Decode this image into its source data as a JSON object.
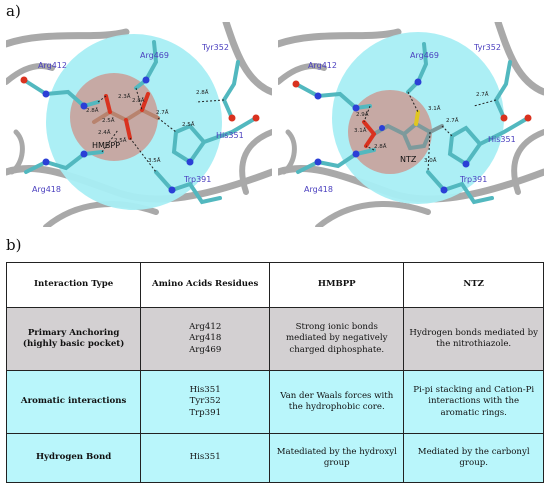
{
  "figure": {
    "panel_a_label": "a)",
    "panel_b_label": "b)"
  },
  "panel_a": {
    "left": {
      "labels": {
        "arg412": "Arg412",
        "arg469": "Arg469",
        "tyr352": "Tyr352",
        "arg418": "Arg418",
        "his351": "His351",
        "trp391": "Trp391",
        "ligand": "HMBPP"
      },
      "distances": [
        "2.8Å",
        "2.4Å",
        "2.5Å",
        "2.3Å",
        "2.8Å",
        "2.7Å",
        "2.8Å",
        "2.5Å",
        "3.5Å",
        "2.5Å"
      ]
    },
    "right": {
      "labels": {
        "arg412": "Arg412",
        "arg469": "Arg469",
        "tyr352": "Tyr352",
        "arg418": "Arg418",
        "his351": "His351",
        "trp391": "Trp391",
        "ligand": "NTZ"
      },
      "distances": [
        "2.9Å",
        "3.1Å",
        "3.1Å",
        "2.8Å",
        "2.7Å",
        "2.7Å",
        "3.0Å"
      ]
    },
    "colors": {
      "pocket": "#a8eef4",
      "core": "#c7a49f",
      "carbon": "#52b8bf",
      "nitrogen": "#2b3fd6",
      "oxygen": "#d9321f",
      "ribbon": "#a9a9a9",
      "label": "#4a3fbf"
    }
  },
  "table": {
    "headers": [
      "Interaction Type",
      "Amino Acids Residues",
      "HMBPP",
      "NTZ"
    ],
    "rows": [
      {
        "type": "Primary Anchoring\n(highly basic pocket)",
        "residues": "Arg412\nArg418\nArg469",
        "hmbpp": "Strong ionic bonds mediated by negatively charged diphosphate.",
        "ntz": "Hydrogen bonds mediated by the nitrothiazole."
      },
      {
        "type": "Aromatic interactions",
        "residues": "His351\nTyr352\nTrp391",
        "hmbpp": "Van der Waals forces with the hydrophobic core.",
        "ntz": "Pi-pi stacking and Cation-Pi interactions with the aromatic rings."
      },
      {
        "type": "Hydrogen Bond",
        "residues": "His351",
        "hmbpp": "Matediated by the hydroxyl group",
        "ntz": "Mediated by the carbonyl group."
      }
    ]
  }
}
